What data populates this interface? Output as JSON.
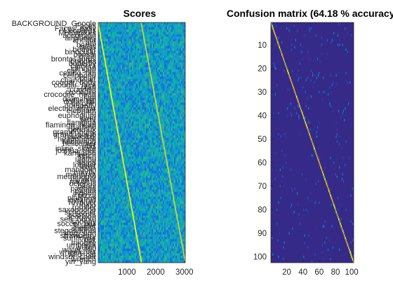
{
  "chart_data": [
    {
      "type": "heatmap",
      "title": "Scores",
      "xlabel": "",
      "ylabel": "",
      "xlim": [
        1,
        3030
      ],
      "xticks": [
        1000,
        2000,
        3000
      ],
      "colormap": "parula",
      "rows": 102,
      "categories": [
        "BACKGROUND_Google",
        "Faces",
        "Faces_easy",
        "Leopards",
        "Motorbikes",
        "accordion",
        "airplanes",
        "anchor",
        "ant",
        "barrel",
        "bass",
        "beaver",
        "binocular",
        "bonsai",
        "brain",
        "brontosaurus",
        "buddha",
        "butterfly",
        "camera",
        "cannon",
        "car_side",
        "ceiling_fan",
        "cellphone",
        "chair",
        "chandelier",
        "cougar_body",
        "cougar_face",
        "crab",
        "crayfish",
        "crocodile",
        "crocodile_head",
        "cup",
        "dalmatian",
        "dollar_bill",
        "dolphin",
        "dragonfly",
        "electric_guitar",
        "elephant",
        "emu",
        "euphonium",
        "ewer",
        "ferry",
        "flamingo",
        "flamingo_head",
        "garfield",
        "gerenuk",
        "gramophone",
        "grand_piano",
        "hawksbill",
        "headphone",
        "hedgehog",
        "helicopter",
        "ibis",
        "inline_skate",
        "joshua_tree",
        "kangaroo",
        "ketch",
        "lamp",
        "laptop",
        "llama",
        "lobster",
        "lotus",
        "mandolin",
        "mayfly",
        "menorah",
        "metronome",
        "minaret",
        "nautilus",
        "octopus",
        "okapi",
        "pagoda",
        "panda",
        "pigeon",
        "pizza",
        "platypus",
        "pyramid",
        "revolver",
        "rhino",
        "rooster",
        "saxophone",
        "schooner",
        "scissors",
        "scorpion",
        "sea_horse",
        "snoopy",
        "soccer_ball",
        "stapler",
        "starfish",
        "stegosaurus",
        "stop_sign",
        "strawberry",
        "sunflower",
        "tick",
        "trilobite",
        "umbrella",
        "watch",
        "water_lilly",
        "wheelchair",
        "wild_cat",
        "windsor_chair",
        "wrench",
        "yin_yang"
      ]
    },
    {
      "type": "heatmap",
      "title": "Confusion matrix (64.18 % accuracy)",
      "xlabel": "",
      "ylabel": "",
      "xlim": [
        1,
        102
      ],
      "ylim": [
        1,
        102
      ],
      "xticks": [
        20,
        40,
        60,
        80,
        100
      ],
      "yticks": [
        10,
        20,
        30,
        40,
        50,
        60,
        70,
        80,
        90,
        100
      ],
      "accuracy_percent": 64.18,
      "colormap": "parula",
      "diagonal": "strong"
    }
  ]
}
